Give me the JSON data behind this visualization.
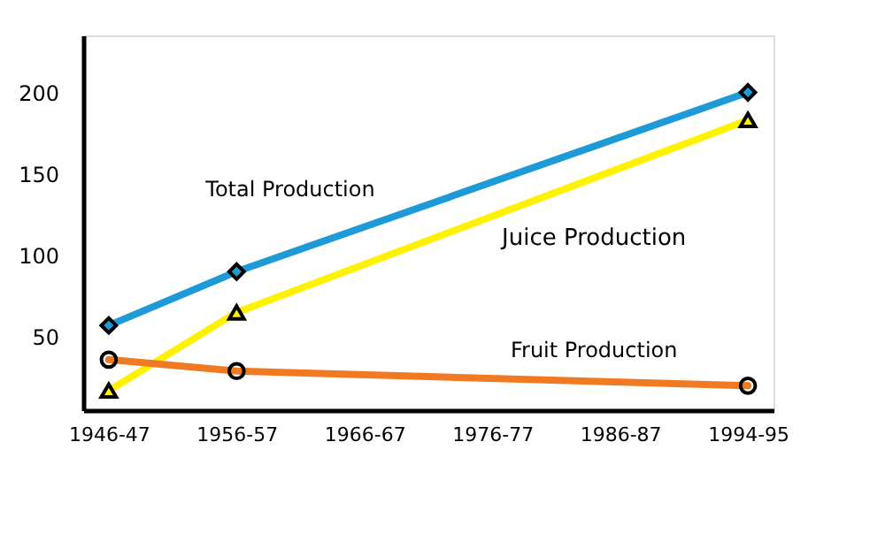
{
  "chart_data": {
    "type": "line",
    "categories": [
      "1946-47",
      "1956-57",
      "1966-67",
      "1976-77",
      "1986-87",
      "1994-95"
    ],
    "ylim": [
      5,
      235
    ],
    "yticks": [
      50,
      100,
      150,
      200
    ],
    "grid": false,
    "line_style": "solid",
    "series": [
      {
        "name": "Total Production",
        "color": "#1e9bd7",
        "marker": "diamond",
        "values": [
          57,
          90,
          null,
          null,
          null,
          200
        ]
      },
      {
        "name": "Juice Production",
        "color": "#fff200",
        "marker": "triangle",
        "values": [
          17,
          65,
          null,
          null,
          null,
          183
        ]
      },
      {
        "name": "Fruit Production",
        "color": "#f07a22",
        "marker": "circle",
        "values": [
          36,
          29,
          null,
          null,
          null,
          20
        ]
      }
    ]
  }
}
